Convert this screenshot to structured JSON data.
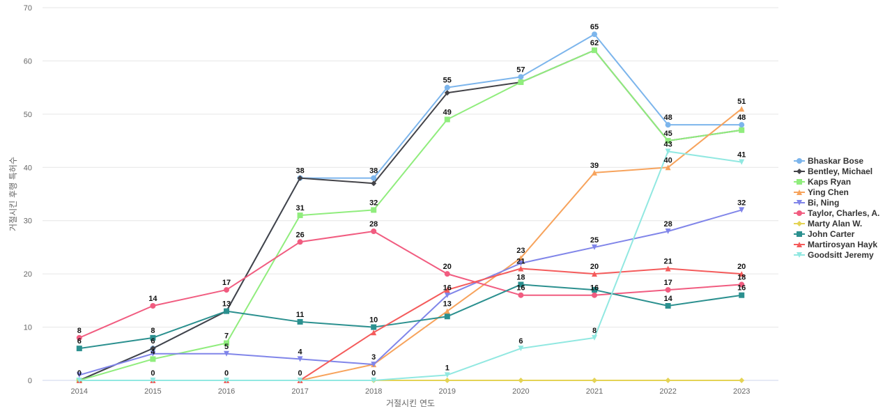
{
  "chart_data": {
    "type": "line",
    "title": "",
    "xlabel": "거절시킨 연도",
    "ylabel": "거절시킨 후행 특허수",
    "ylim": [
      0,
      70
    ],
    "yticks": [
      0,
      10,
      20,
      30,
      40,
      50,
      60,
      70
    ],
    "grid": true,
    "legend_position": "right",
    "categories": [
      "2014",
      "2015",
      "2016",
      "2017",
      "2018",
      "2019",
      "2020",
      "2021",
      "2022",
      "2023"
    ],
    "series": [
      {
        "name": "Bhaskar Bose",
        "color": "#7cb5ec",
        "marker": "circle",
        "values": [
          0,
          6,
          13,
          38,
          38,
          55,
          57,
          65,
          48,
          48
        ]
      },
      {
        "name": "Bentley, Michael",
        "color": "#434348",
        "marker": "diamond",
        "values": [
          0,
          6,
          13,
          38,
          37,
          54,
          56,
          62,
          45,
          47
        ]
      },
      {
        "name": "Kaps Ryan",
        "color": "#90ed7d",
        "marker": "square",
        "values": [
          0,
          4,
          7,
          31,
          32,
          49,
          56,
          62,
          45,
          47
        ]
      },
      {
        "name": "Ying Chen",
        "color": "#f7a35c",
        "marker": "triangle",
        "values": [
          0,
          0,
          0,
          0,
          3,
          13,
          23,
          39,
          40,
          51
        ]
      },
      {
        "name": "Bi, Ning",
        "color": "#8085e9",
        "marker": "triangle-down",
        "values": [
          1,
          5,
          5,
          4,
          3,
          16,
          22,
          25,
          28,
          32
        ]
      },
      {
        "name": "Taylor, Charles, A.",
        "color": "#f15c80",
        "marker": "circle",
        "values": [
          8,
          14,
          17,
          26,
          28,
          20,
          16,
          16,
          17,
          18
        ]
      },
      {
        "name": "Marty Alan W.",
        "color": "#e4d354",
        "marker": "diamond",
        "values": [
          0,
          0,
          0,
          0,
          0,
          0,
          0,
          0,
          0,
          0
        ]
      },
      {
        "name": "John Carter",
        "color": "#2b908f",
        "marker": "square",
        "values": [
          6,
          8,
          13,
          11,
          10,
          12,
          18,
          17,
          14,
          16
        ]
      },
      {
        "name": "Martirosyan Hayk",
        "color": "#f45b5b",
        "marker": "triangle",
        "values": [
          0,
          0,
          0,
          0,
          9,
          17,
          21,
          20,
          21,
          20
        ]
      },
      {
        "name": "Goodsitt Jeremy",
        "color": "#91e8e1",
        "marker": "triangle-down",
        "values": [
          0,
          0,
          0,
          0,
          0,
          1,
          6,
          8,
          43,
          41
        ]
      }
    ],
    "data_labels": [
      {
        "x": "2014",
        "value": 8
      },
      {
        "x": "2014",
        "value": 6
      },
      {
        "x": "2014",
        "value": 0
      },
      {
        "x": "2015",
        "value": 14
      },
      {
        "x": "2015",
        "value": 8
      },
      {
        "x": "2015",
        "value": 6
      },
      {
        "x": "2015",
        "value": 4
      },
      {
        "x": "2015",
        "value": 0
      },
      {
        "x": "2016",
        "value": 17
      },
      {
        "x": "2016",
        "value": 13
      },
      {
        "x": "2016",
        "value": 7
      },
      {
        "x": "2016",
        "value": 5
      },
      {
        "x": "2016",
        "value": 0
      },
      {
        "x": "2017",
        "value": 38
      },
      {
        "x": "2017",
        "value": 31
      },
      {
        "x": "2017",
        "value": 26
      },
      {
        "x": "2017",
        "value": 11
      },
      {
        "x": "2017",
        "value": 4
      },
      {
        "x": "2017",
        "value": 0
      },
      {
        "x": "2018",
        "value": 38
      },
      {
        "x": "2018",
        "value": 32
      },
      {
        "x": "2018",
        "value": 28
      },
      {
        "x": "2018",
        "value": 10
      },
      {
        "x": "2018",
        "value": 3
      },
      {
        "x": "2018",
        "value": 0
      },
      {
        "x": "2019",
        "value": 55
      },
      {
        "x": "2019",
        "value": 49
      },
      {
        "x": "2019",
        "value": 20
      },
      {
        "x": "2019",
        "value": 16
      },
      {
        "x": "2019",
        "value": 13
      },
      {
        "x": "2019",
        "value": 1
      },
      {
        "x": "2020",
        "value": 57
      },
      {
        "x": "2020",
        "value": 23
      },
      {
        "x": "2020",
        "value": 21
      },
      {
        "x": "2020",
        "value": 18
      },
      {
        "x": "2020",
        "value": 16
      },
      {
        "x": "2020",
        "value": 6
      },
      {
        "x": "2021",
        "value": 65
      },
      {
        "x": "2021",
        "value": 62
      },
      {
        "x": "2021",
        "value": 39
      },
      {
        "x": "2021",
        "value": 25
      },
      {
        "x": "2021",
        "value": 20
      },
      {
        "x": "2021",
        "value": 16
      },
      {
        "x": "2021",
        "value": 8
      },
      {
        "x": "2022",
        "value": 48
      },
      {
        "x": "2022",
        "value": 45
      },
      {
        "x": "2022",
        "value": 43
      },
      {
        "x": "2022",
        "value": 40
      },
      {
        "x": "2022",
        "value": 28
      },
      {
        "x": "2022",
        "value": 21
      },
      {
        "x": "2022",
        "value": 17
      },
      {
        "x": "2022",
        "value": 14
      },
      {
        "x": "2023",
        "value": 51
      },
      {
        "x": "2023",
        "value": 48
      },
      {
        "x": "2023",
        "value": 41
      },
      {
        "x": "2023",
        "value": 32
      },
      {
        "x": "2023",
        "value": 20
      },
      {
        "x": "2023",
        "value": 18
      },
      {
        "x": "2023",
        "value": 16
      }
    ]
  }
}
